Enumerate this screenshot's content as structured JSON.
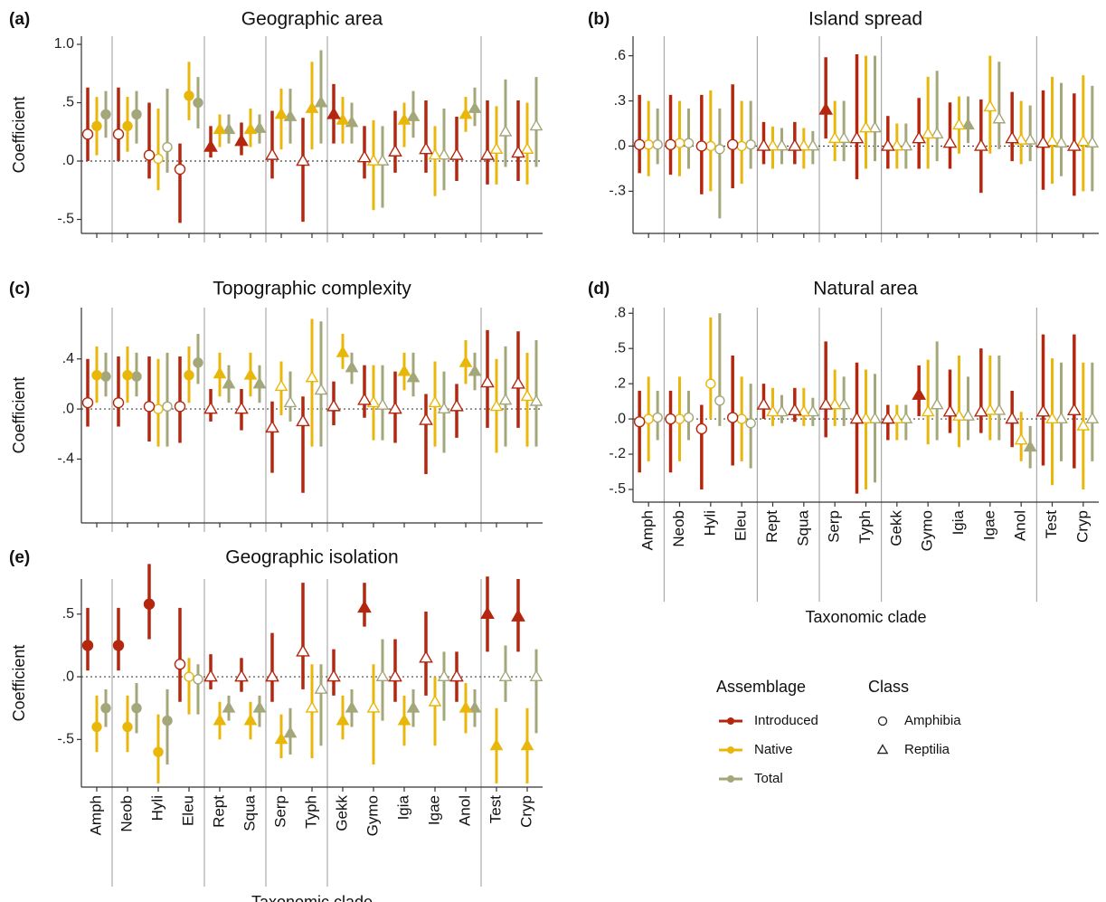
{
  "chart_data": [
    {
      "type": "pointrange",
      "label": "(a)",
      "title": "Geographic area",
      "ylabel": "Coefficient",
      "ylim": [
        -0.62,
        1.07
      ],
      "yticks": [
        {
          "value": 1.0,
          "label": "1.0"
        },
        {
          "value": 0.5,
          "label": ".5"
        },
        {
          "value": 0,
          "label": ".0"
        },
        {
          "value": -0.5,
          "label": "-.5"
        }
      ],
      "series": [
        {
          "name": "Introduced",
          "color": "#b5260f",
          "values": [
            0.23,
            0.23,
            0.05,
            -0.07,
            0.12,
            0.17,
            0.05,
            0.0,
            0.4,
            0.03,
            0.08,
            0.1,
            0.05,
            0.05,
            0.07
          ],
          "lower": [
            0.0,
            0.0,
            -0.15,
            -0.53,
            0.03,
            0.05,
            -0.15,
            -0.52,
            0.15,
            -0.15,
            -0.1,
            -0.1,
            -0.17,
            -0.2,
            -0.17
          ],
          "upper": [
            0.63,
            0.63,
            0.5,
            0.15,
            0.3,
            0.33,
            0.43,
            0.37,
            0.66,
            0.3,
            0.43,
            0.52,
            0.38,
            0.52,
            0.52
          ]
        },
        {
          "name": "Native",
          "color": "#e8b70a",
          "values": [
            0.3,
            0.3,
            0.02,
            0.56,
            0.27,
            0.27,
            0.4,
            0.45,
            0.35,
            0.0,
            0.35,
            0.05,
            0.4,
            0.1,
            0.1
          ],
          "lower": [
            0.05,
            0.08,
            -0.25,
            0.35,
            0.12,
            0.12,
            0.1,
            0.1,
            0.15,
            -0.42,
            0.12,
            -0.3,
            0.25,
            -0.2,
            -0.2
          ],
          "upper": [
            0.55,
            0.55,
            0.45,
            0.85,
            0.4,
            0.45,
            0.62,
            0.85,
            0.55,
            0.35,
            0.5,
            0.3,
            0.55,
            0.47,
            0.5
          ]
        },
        {
          "name": "Total",
          "color": "#a3a77a",
          "values": [
            0.4,
            0.4,
            0.12,
            0.5,
            0.27,
            0.28,
            0.38,
            0.5,
            0.33,
            0.0,
            0.38,
            0.05,
            0.45,
            0.25,
            0.3
          ],
          "lower": [
            0.2,
            0.15,
            -0.1,
            0.28,
            0.15,
            0.15,
            0.15,
            0.15,
            0.15,
            -0.4,
            0.2,
            -0.25,
            0.3,
            -0.05,
            -0.05
          ],
          "upper": [
            0.6,
            0.6,
            0.62,
            0.72,
            0.4,
            0.4,
            0.62,
            0.95,
            0.5,
            0.3,
            0.6,
            0.45,
            0.63,
            0.7,
            0.72
          ]
        }
      ]
    },
    {
      "type": "pointrange",
      "label": "(b)",
      "title": "Island spread",
      "ylim": [
        -0.58,
        0.73
      ],
      "yticks": [
        {
          "value": 0.6,
          "label": ".6"
        },
        {
          "value": 0.3,
          "label": ".3"
        },
        {
          "value": 0,
          "label": ".0"
        },
        {
          "value": -0.3,
          "label": "-.3"
        }
      ],
      "series": [
        {
          "name": "Introduced",
          "color": "#b5260f",
          "values": [
            0.01,
            0.01,
            0.0,
            0.01,
            0.0,
            0.0,
            0.24,
            0.05,
            0.0,
            0.05,
            0.02,
            0.0,
            0.05,
            0.02,
            0.0
          ],
          "lower": [
            -0.18,
            -0.19,
            -0.32,
            -0.28,
            -0.12,
            -0.12,
            0.05,
            -0.22,
            -0.15,
            -0.15,
            -0.15,
            -0.31,
            -0.1,
            -0.29,
            -0.33
          ],
          "upper": [
            0.34,
            0.34,
            0.34,
            0.41,
            0.16,
            0.16,
            0.59,
            0.61,
            0.2,
            0.32,
            0.29,
            0.31,
            0.36,
            0.37,
            0.35
          ]
        },
        {
          "name": "Native",
          "color": "#e8b70a",
          "values": [
            0.01,
            0.02,
            0.0,
            0.0,
            0.0,
            0.0,
            0.05,
            0.12,
            0.0,
            0.08,
            0.14,
            0.26,
            0.04,
            0.03,
            0.03
          ],
          "lower": [
            -0.2,
            -0.2,
            -0.3,
            -0.25,
            -0.15,
            -0.15,
            -0.1,
            -0.15,
            -0.15,
            -0.15,
            -0.05,
            -0.05,
            -0.12,
            -0.25,
            -0.3
          ],
          "upper": [
            0.3,
            0.3,
            0.37,
            0.3,
            0.13,
            0.12,
            0.3,
            0.6,
            0.15,
            0.46,
            0.33,
            0.6,
            0.3,
            0.46,
            0.47
          ]
        },
        {
          "name": "Total",
          "color": "#a3a77a",
          "values": [
            0.01,
            0.02,
            -0.02,
            0.01,
            0.0,
            0.0,
            0.05,
            0.12,
            0.0,
            0.08,
            0.14,
            0.18,
            0.04,
            0.02,
            0.02
          ],
          "lower": [
            -0.12,
            -0.15,
            -0.48,
            -0.15,
            -0.12,
            -0.12,
            -0.1,
            -0.1,
            -0.15,
            -0.1,
            0.02,
            -0.02,
            -0.1,
            -0.2,
            -0.3
          ],
          "upper": [
            0.25,
            0.25,
            0.25,
            0.3,
            0.12,
            0.1,
            0.3,
            0.6,
            0.15,
            0.5,
            0.33,
            0.56,
            0.27,
            0.42,
            0.4
          ]
        }
      ]
    },
    {
      "type": "pointrange",
      "label": "(c)",
      "title": "Topographic complexity",
      "ylabel": "Coefficient",
      "ylim": [
        -0.91,
        0.81
      ],
      "yticks": [
        {
          "value": 0.4,
          "label": ".4"
        },
        {
          "value": 0,
          "label": ".0"
        },
        {
          "value": -0.4,
          "label": "-.4"
        }
      ],
      "series": [
        {
          "name": "Introduced",
          "color": "#b5260f",
          "values": [
            0.05,
            0.05,
            0.02,
            0.02,
            0.0,
            0.0,
            -0.15,
            -0.1,
            0.02,
            0.07,
            0.0,
            -0.09,
            0.02,
            0.21,
            0.2
          ],
          "lower": [
            -0.14,
            -0.14,
            -0.26,
            -0.27,
            -0.1,
            -0.17,
            -0.51,
            -0.67,
            -0.13,
            -0.07,
            -0.27,
            -0.52,
            -0.23,
            -0.15,
            -0.15
          ],
          "upper": [
            0.4,
            0.42,
            0.42,
            0.42,
            0.16,
            0.16,
            0.06,
            0.1,
            0.22,
            0.35,
            0.3,
            0.12,
            0.2,
            0.63,
            0.62
          ]
        },
        {
          "name": "Native",
          "color": "#e8b70a",
          "values": [
            0.27,
            0.27,
            0.0,
            0.27,
            0.28,
            0.27,
            0.18,
            0.25,
            0.45,
            0.05,
            0.3,
            0.05,
            0.37,
            0.02,
            0.1
          ],
          "lower": [
            0.05,
            0.05,
            -0.3,
            0.05,
            0.1,
            0.1,
            -0.05,
            -0.3,
            0.32,
            -0.25,
            0.15,
            -0.3,
            0.2,
            -0.35,
            -0.3
          ],
          "upper": [
            0.5,
            0.5,
            0.4,
            0.5,
            0.45,
            0.45,
            0.38,
            0.72,
            0.6,
            0.35,
            0.45,
            0.38,
            0.55,
            0.4,
            0.45
          ]
        },
        {
          "name": "Total",
          "color": "#a3a77a",
          "values": [
            0.26,
            0.26,
            0.02,
            0.37,
            0.2,
            0.2,
            0.05,
            0.15,
            0.33,
            0.03,
            0.25,
            0.0,
            0.3,
            0.07,
            0.06
          ],
          "lower": [
            0.1,
            0.1,
            -0.3,
            0.2,
            0.05,
            0.05,
            -0.1,
            -0.3,
            0.2,
            -0.25,
            0.1,
            -0.35,
            0.15,
            -0.3,
            -0.3
          ],
          "upper": [
            0.45,
            0.45,
            0.45,
            0.6,
            0.35,
            0.35,
            0.3,
            0.7,
            0.45,
            0.35,
            0.45,
            0.3,
            0.45,
            0.5,
            0.55
          ]
        }
      ]
    },
    {
      "type": "pointrange",
      "label": "(d)",
      "title": "Natural area",
      "xlabel": "Taxonomic clade",
      "categories": [
        "Amph",
        "Neob",
        "Hyli",
        "Eleu",
        "Rept",
        "Squa",
        "Serp",
        "Typh",
        "Gekk",
        "Gymo",
        "Igia",
        "Igae",
        "Anol",
        "Test",
        "Cryp"
      ],
      "ylim": [
        -0.59,
        0.79
      ],
      "yticks": [
        {
          "value": 0.75,
          "label": ".8"
        },
        {
          "value": 0.5,
          "label": ".5"
        },
        {
          "value": 0.25,
          "label": ".2"
        },
        {
          "value": 0,
          "label": ".0"
        },
        {
          "value": -0.25,
          "label": "-.2"
        },
        {
          "value": -0.5,
          "label": "-.5"
        }
      ],
      "series": [
        {
          "name": "Introduced",
          "color": "#b5260f",
          "values": [
            -0.02,
            0.0,
            -0.07,
            0.01,
            0.1,
            0.06,
            0.1,
            0.0,
            0.0,
            0.17,
            0.05,
            0.05,
            0.0,
            0.05,
            0.06
          ],
          "lower": [
            -0.38,
            -0.38,
            -0.5,
            -0.33,
            0.0,
            -0.02,
            -0.13,
            -0.53,
            -0.15,
            0.02,
            -0.1,
            -0.1,
            -0.2,
            -0.33,
            -0.35
          ],
          "upper": [
            0.2,
            0.2,
            0.1,
            0.45,
            0.25,
            0.22,
            0.55,
            0.4,
            0.1,
            0.38,
            0.35,
            0.5,
            0.2,
            0.6,
            0.6
          ]
        },
        {
          "name": "Native",
          "color": "#e8b70a",
          "values": [
            0.0,
            0.0,
            0.25,
            0.0,
            0.05,
            0.05,
            0.1,
            0.0,
            0.0,
            0.05,
            0.02,
            0.06,
            -0.15,
            0.0,
            -0.05
          ],
          "lower": [
            -0.3,
            -0.3,
            0.0,
            -0.3,
            -0.05,
            -0.05,
            -0.05,
            -0.5,
            -0.15,
            -0.18,
            -0.2,
            -0.15,
            -0.3,
            -0.47,
            -0.5
          ],
          "upper": [
            0.3,
            0.3,
            0.72,
            0.3,
            0.22,
            0.22,
            0.35,
            0.35,
            0.1,
            0.42,
            0.45,
            0.45,
            0.05,
            0.43,
            0.4
          ]
        },
        {
          "name": "Total",
          "color": "#a3a77a",
          "values": [
            0.01,
            0.01,
            0.13,
            -0.03,
            0.05,
            0.05,
            0.1,
            0.0,
            0.0,
            0.1,
            0.02,
            0.06,
            -0.2,
            0.0,
            0.0
          ],
          "lower": [
            -0.15,
            -0.15,
            -0.05,
            -0.35,
            -0.03,
            -0.05,
            -0.05,
            -0.45,
            -0.15,
            -0.15,
            -0.15,
            -0.15,
            -0.35,
            -0.3,
            -0.3
          ],
          "upper": [
            0.2,
            0.2,
            0.75,
            0.25,
            0.17,
            0.15,
            0.3,
            0.32,
            0.1,
            0.55,
            0.3,
            0.45,
            -0.05,
            0.4,
            0.4
          ]
        }
      ]
    },
    {
      "type": "pointrange",
      "label": "(e)",
      "title": "Geographic isolation",
      "ylabel": "Coefficient",
      "xlabel": "Taxonomic clade",
      "categories": [
        "Amph",
        "Neob",
        "Hyli",
        "Eleu",
        "Rept",
        "Squa",
        "Serp",
        "Typh",
        "Gekk",
        "Gymo",
        "Igia",
        "Igae",
        "Anol",
        "Test",
        "Cryp"
      ],
      "ylim": [
        -0.88,
        0.78
      ],
      "yticks": [
        {
          "value": 0.5,
          "label": ".5"
        },
        {
          "value": 0,
          "label": ".0"
        },
        {
          "value": -0.5,
          "label": "-.5"
        }
      ],
      "series": [
        {
          "name": "Introduced",
          "color": "#b5260f",
          "values": [
            0.25,
            0.25,
            0.58,
            0.1,
            0.0,
            0.0,
            0.0,
            0.2,
            0.0,
            0.55,
            0.0,
            0.15,
            0.0,
            0.5,
            0.48
          ],
          "lower": [
            0.05,
            0.05,
            0.3,
            -0.2,
            -0.1,
            -0.12,
            -0.2,
            -0.1,
            -0.15,
            0.4,
            -0.2,
            -0.15,
            -0.2,
            0.2,
            0.2
          ],
          "upper": [
            0.55,
            0.55,
            0.9,
            0.55,
            0.18,
            0.15,
            0.35,
            0.75,
            0.22,
            0.75,
            0.3,
            0.52,
            0.2,
            0.8,
            0.78
          ]
        },
        {
          "name": "Native",
          "color": "#e8b70a",
          "values": [
            -0.4,
            -0.4,
            -0.6,
            0.0,
            -0.35,
            -0.35,
            -0.5,
            -0.25,
            -0.35,
            -0.25,
            -0.35,
            -0.2,
            -0.25,
            -0.55,
            -0.55
          ],
          "lower": [
            -0.6,
            -0.6,
            -0.85,
            -0.3,
            -0.5,
            -0.5,
            -0.65,
            -0.65,
            -0.5,
            -0.7,
            -0.55,
            -0.55,
            -0.45,
            -0.85,
            -0.85
          ],
          "upper": [
            -0.15,
            -0.15,
            -0.3,
            0.15,
            -0.2,
            -0.2,
            -0.3,
            0.1,
            -0.15,
            0.1,
            -0.15,
            0.0,
            -0.05,
            -0.25,
            -0.25
          ]
        },
        {
          "name": "Total",
          "color": "#a3a77a",
          "values": [
            -0.25,
            -0.25,
            -0.35,
            -0.02,
            -0.25,
            -0.25,
            -0.45,
            -0.1,
            -0.25,
            0.0,
            -0.25,
            0.0,
            -0.25,
            0.0,
            0.0
          ],
          "lower": [
            -0.4,
            -0.45,
            -0.7,
            -0.3,
            -0.35,
            -0.4,
            -0.62,
            -0.55,
            -0.4,
            -0.35,
            -0.4,
            -0.35,
            -0.4,
            -0.2,
            -0.45
          ],
          "upper": [
            -0.1,
            -0.05,
            -0.1,
            0.1,
            -0.15,
            -0.15,
            -0.25,
            0.1,
            -0.1,
            0.3,
            -0.1,
            0.2,
            -0.1,
            0.25,
            0.22
          ]
        }
      ]
    }
  ],
  "legend": {
    "assemblage_title": "Assemblage",
    "class_title": "Class",
    "classes": [
      "Amphibia",
      "Reptilia"
    ]
  }
}
